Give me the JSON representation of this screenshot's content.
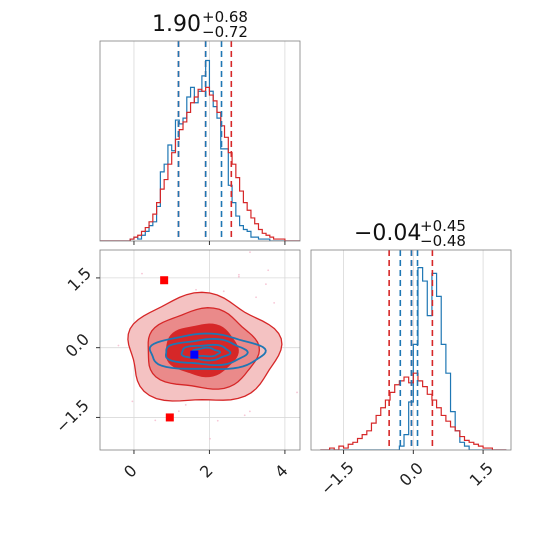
{
  "colors": {
    "blue": "#1f77b4",
    "red": "#d62728",
    "grid": "#d9d9d9",
    "frame": "#808080"
  },
  "chart_data": [
    {
      "type": "histogram",
      "panel": "top-left",
      "title": {
        "main": "1.90",
        "sup": "+0.68",
        "sub": "−0.72"
      },
      "grid": true,
      "xlim": [
        -0.9,
        4.4
      ],
      "bins_x": [
        -0.9,
        -0.8,
        -0.7,
        -0.6,
        -0.5,
        -0.4,
        -0.3,
        -0.2,
        -0.1,
        0.0,
        0.1,
        0.2,
        0.3,
        0.4,
        0.5,
        0.6,
        0.7,
        0.8,
        0.9,
        1.0,
        1.1,
        1.2,
        1.3,
        1.4,
        1.5,
        1.6,
        1.7,
        1.8,
        1.9,
        2.0,
        2.1,
        2.2,
        2.3,
        2.4,
        2.5,
        2.6,
        2.7,
        2.8,
        2.9,
        3.0,
        3.1,
        3.2,
        3.3,
        3.4,
        3.5,
        3.6,
        3.7,
        3.8,
        3.9,
        4.0,
        4.1,
        4.2,
        4.3
      ],
      "series": [
        {
          "color": "blue",
          "values": [
            0,
            0,
            0,
            0,
            0,
            0,
            0,
            0,
            0.01,
            0.02,
            0.01,
            0.03,
            0.05,
            0.08,
            0.1,
            0.18,
            0.36,
            0.4,
            0.5,
            0.47,
            0.63,
            0.61,
            0.64,
            0.75,
            0.8,
            0.72,
            0.78,
            0.86,
            0.94,
            0.78,
            0.7,
            0.64,
            0.48,
            0.48,
            0.29,
            0.2,
            0.13,
            0.08,
            0.06,
            0.05,
            0.02,
            0.02,
            0.01,
            0.01,
            0.01,
            0,
            0,
            0,
            0,
            0,
            0,
            0,
            0
          ],
          "quantiles": [
            1.18,
            1.9,
            2.32
          ]
        },
        {
          "color": "red",
          "values": [
            0,
            0,
            0,
            0,
            0,
            0,
            0,
            0,
            0.01,
            0.02,
            0.03,
            0.05,
            0.07,
            0.1,
            0.14,
            0.2,
            0.27,
            0.32,
            0.4,
            0.46,
            0.53,
            0.58,
            0.62,
            0.67,
            0.72,
            0.75,
            0.79,
            0.78,
            0.8,
            0.76,
            0.73,
            0.67,
            0.6,
            0.54,
            0.46,
            0.4,
            0.33,
            0.26,
            0.2,
            0.16,
            0.12,
            0.09,
            0.06,
            0.04,
            0.03,
            0.02,
            0.01,
            0.01,
            0.01,
            0,
            0,
            0,
            0
          ],
          "quantiles": [
            1.18,
            1.9,
            2.58
          ]
        }
      ]
    },
    {
      "type": "contour",
      "panel": "bottom-left",
      "grid": true,
      "xlim": [
        -0.9,
        4.4
      ],
      "ylim": [
        -2.2,
        2.1
      ],
      "x_ticks": [
        "0",
        "2",
        "4"
      ],
      "y_ticks": [
        "1.5",
        "0.0",
        "−1.5"
      ],
      "markers": [
        {
          "color": "red",
          "shape": "square",
          "x": 0.8,
          "y": 1.45
        },
        {
          "color": "red",
          "shape": "square",
          "x": 0.95,
          "y": -1.5
        },
        {
          "color": "blue",
          "shape": "square",
          "x": 1.6,
          "y": -0.15
        }
      ],
      "series": [
        {
          "color": "red",
          "center": [
            1.8,
            -0.05
          ],
          "sigma": [
            0.95,
            0.55
          ],
          "filled": true
        },
        {
          "color": "blue",
          "center": [
            1.9,
            -0.1
          ],
          "sigma": [
            0.8,
            0.2
          ],
          "filled": false
        }
      ]
    },
    {
      "type": "histogram",
      "panel": "bottom-right",
      "title": {
        "main": "−0.04",
        "sup": "+0.45",
        "sub": "−0.48"
      },
      "grid": true,
      "xlim": [
        -2.2,
        2.1
      ],
      "x_ticks": [
        "−1.5",
        "0.0",
        "1.5"
      ],
      "bins_x": [
        -2.0,
        -1.9,
        -1.8,
        -1.7,
        -1.6,
        -1.5,
        -1.4,
        -1.3,
        -1.2,
        -1.1,
        -1.0,
        -0.9,
        -0.8,
        -0.7,
        -0.6,
        -0.5,
        -0.4,
        -0.3,
        -0.2,
        -0.1,
        0.0,
        0.1,
        0.2,
        0.3,
        0.4,
        0.5,
        0.6,
        0.7,
        0.8,
        0.9,
        1.0,
        1.1,
        1.2,
        1.3,
        1.4,
        1.5,
        1.6,
        1.7,
        1.8,
        1.9
      ],
      "series": [
        {
          "color": "blue",
          "values": [
            0,
            0,
            0,
            0,
            0,
            0,
            0,
            0,
            0,
            0,
            0,
            0,
            0,
            0,
            0,
            0,
            0,
            0.02,
            0.08,
            0.25,
            0.55,
            0.95,
            0.88,
            0.7,
            0.92,
            0.8,
            0.55,
            0.4,
            0.2,
            0.1,
            0.04,
            0.02,
            0,
            0,
            0,
            0,
            0,
            0,
            0,
            0
          ],
          "quantiles": [
            -0.28,
            -0.04,
            0.09
          ]
        },
        {
          "color": "red",
          "values": [
            0,
            0,
            0.01,
            0,
            0.02,
            0.01,
            0.03,
            0.04,
            0.06,
            0.08,
            0.1,
            0.14,
            0.18,
            0.22,
            0.26,
            0.3,
            0.34,
            0.36,
            0.38,
            0.35,
            0.4,
            0.36,
            0.33,
            0.29,
            0.26,
            0.22,
            0.18,
            0.15,
            0.12,
            0.1,
            0.07,
            0.05,
            0.04,
            0.03,
            0.02,
            0.01,
            0.01,
            0,
            0,
            0
          ],
          "quantiles": [
            -0.52,
            -0.04,
            0.41
          ]
        }
      ]
    }
  ]
}
